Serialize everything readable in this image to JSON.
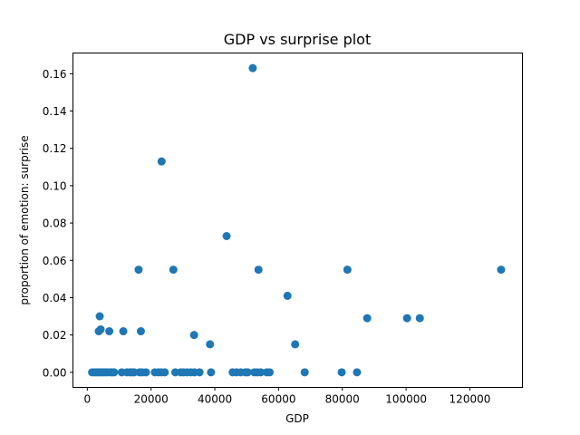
{
  "chart_data": {
    "type": "scatter",
    "title": "GDP vs surprise plot",
    "xlabel": "GDP",
    "ylabel": "proportion of emotion: surprise",
    "xlim": [
      -4500,
      136500
    ],
    "ylim": [
      -0.0081,
      0.1711
    ],
    "xticks": [
      0,
      20000,
      40000,
      60000,
      80000,
      100000,
      120000
    ],
    "yticks": [
      0.0,
      0.02,
      0.04,
      0.06,
      0.08,
      0.1,
      0.12,
      0.14,
      0.16
    ],
    "ytick_decimals": 2,
    "grid": false,
    "marker_color": "#1f77b4",
    "series": [
      {
        "x": [
          1500,
          2200,
          2800,
          3300,
          3900,
          4500,
          5100,
          5700,
          6300,
          7200,
          7800,
          8400,
          10800,
          12400,
          13300,
          14000,
          14700,
          16400,
          17200,
          18400,
          21200,
          22300,
          23200,
          24300,
          27600,
          29300,
          30200,
          31300,
          32500,
          33600,
          35200,
          38800,
          45600,
          46800,
          48100,
          49600,
          50300,
          52400,
          53300,
          54400,
          56300,
          57200,
          68200,
          79800,
          84600,
          3900,
          4200,
          3600,
          6900,
          11300,
          16800,
          33500,
          38500,
          65200,
          62800,
          87800,
          100300,
          104300,
          16100,
          27000,
          53700,
          81600,
          129800,
          43700,
          23300,
          51900
        ],
        "y": [
          0,
          0,
          0,
          0,
          0,
          0,
          0,
          0,
          0,
          0,
          0,
          0,
          0,
          0,
          0,
          0,
          0,
          0,
          0,
          0,
          0,
          0,
          0,
          0,
          0,
          0,
          0,
          0,
          0,
          0,
          0,
          0,
          0,
          0,
          0,
          0,
          0,
          0,
          0,
          0,
          0,
          0,
          0,
          0,
          0,
          0.03,
          0.023,
          0.022,
          0.022,
          0.022,
          0.022,
          0.02,
          0.015,
          0.015,
          0.041,
          0.029,
          0.029,
          0.029,
          0.055,
          0.055,
          0.055,
          0.055,
          0.055,
          0.073,
          0.113,
          0.163
        ]
      }
    ]
  }
}
